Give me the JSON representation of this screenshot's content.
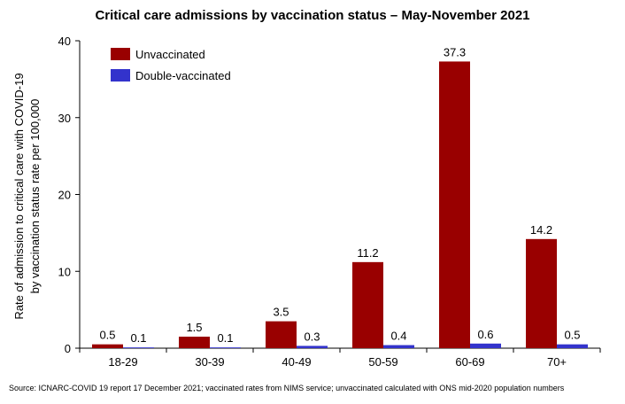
{
  "chart_data": {
    "type": "bar",
    "title": "Critical care admissions by vaccination status – May-November 2021",
    "ylabel_lines": [
      "Rate of admission to critical care with COVID-19",
      "by vaccination status rate per 100,000"
    ],
    "xlabel": "",
    "categories": [
      "18-29",
      "30-39",
      "40-49",
      "50-59",
      "60-69",
      "70+"
    ],
    "series": [
      {
        "name": "Unvaccinated",
        "color": "#990000",
        "values": [
          0.5,
          1.5,
          3.5,
          11.2,
          37.3,
          14.2
        ],
        "labels": [
          "0.5",
          "1.5",
          "3.5",
          "11.2",
          "37.3",
          "14.2"
        ]
      },
      {
        "name": "Double-vaccinated",
        "color": "#3333cc",
        "values": [
          0.1,
          0.1,
          0.3,
          0.4,
          0.6,
          0.5
        ],
        "labels": [
          "0.1",
          "0.1",
          "0.3",
          "0.4",
          "0.6",
          "0.5"
        ]
      }
    ],
    "ylim": [
      0,
      40
    ],
    "yticks": [
      0,
      10,
      20,
      30,
      40
    ],
    "ytick_labels": [
      "0",
      "10",
      "20",
      "30",
      "40"
    ],
    "grid": false,
    "legend_position": "top-left",
    "source": "Source: ICNARC-COVID 19 report 17 December 2021; vaccinated rates from NIMS service; unvaccinated calculated with ONS mid-2020 population numbers"
  }
}
